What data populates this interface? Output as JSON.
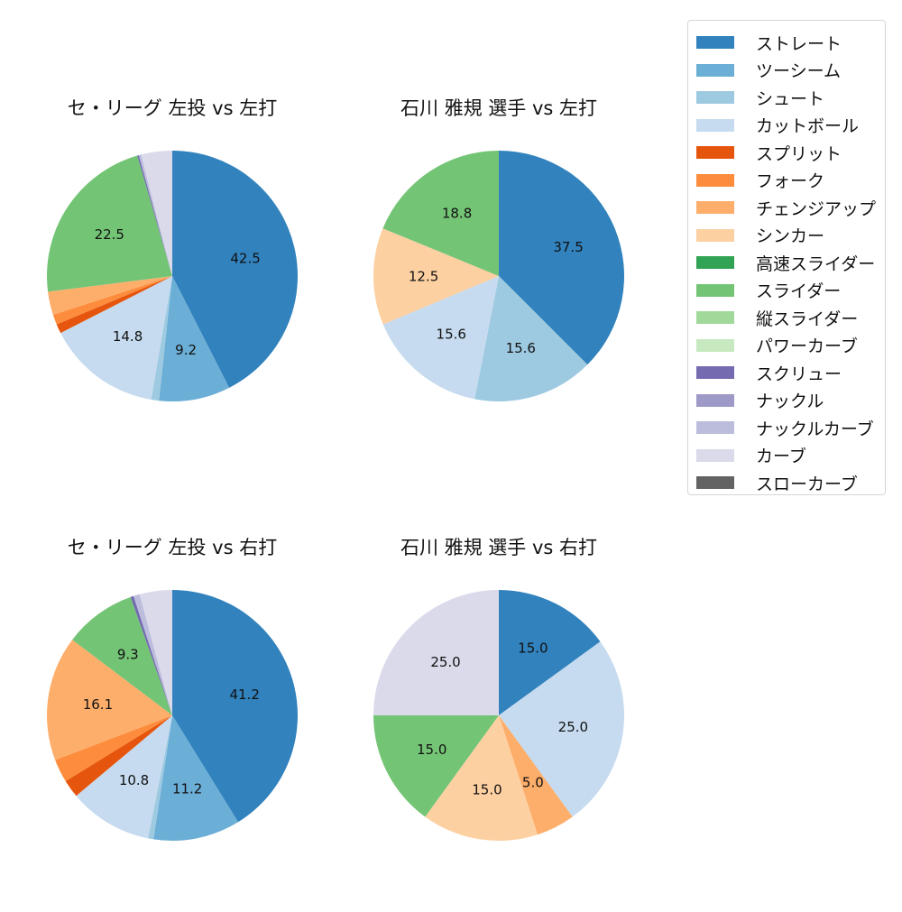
{
  "figure": {
    "legend": [
      {
        "label": "ストレート",
        "color": "#3182bd"
      },
      {
        "label": "ツーシーム",
        "color": "#6baed6"
      },
      {
        "label": "シュート",
        "color": "#9ecae1"
      },
      {
        "label": "カットボール",
        "color": "#c6dbef"
      },
      {
        "label": "スプリット",
        "color": "#e6550d"
      },
      {
        "label": "フォーク",
        "color": "#fd8d3c"
      },
      {
        "label": "チェンジアップ",
        "color": "#fdae6b"
      },
      {
        "label": "シンカー",
        "color": "#fdd0a2"
      },
      {
        "label": "高速スライダー",
        "color": "#31a354"
      },
      {
        "label": "スライダー",
        "color": "#74c476"
      },
      {
        "label": "縦スライダー",
        "color": "#a1d99b"
      },
      {
        "label": "パワーカーブ",
        "color": "#c7e9c0"
      },
      {
        "label": "スクリュー",
        "color": "#756bb1"
      },
      {
        "label": "ナックル",
        "color": "#9e9ac8"
      },
      {
        "label": "ナックルカーブ",
        "color": "#bcbddc"
      },
      {
        "label": "カーブ",
        "color": "#dadaeb"
      },
      {
        "label": "スローカーブ",
        "color": "#636363"
      }
    ]
  },
  "chart_data": [
    {
      "type": "pie",
      "title": "セ・リーグ 左投 vs 左打",
      "start_angle": 90,
      "direction": "clockwise",
      "slices": [
        {
          "label": "ストレート",
          "value": 42.5,
          "show_label": true
        },
        {
          "label": "ツーシーム",
          "value": 9.2,
          "show_label": true
        },
        {
          "label": "シュート",
          "value": 1.0,
          "show_label": false
        },
        {
          "label": "カットボール",
          "value": 14.8,
          "show_label": true
        },
        {
          "label": "スプリット",
          "value": 1.2,
          "show_label": false
        },
        {
          "label": "フォーク",
          "value": 1.3,
          "show_label": false
        },
        {
          "label": "チェンジアップ",
          "value": 3.0,
          "show_label": false
        },
        {
          "label": "スライダー",
          "value": 22.5,
          "show_label": true
        },
        {
          "label": "スクリュー",
          "value": 0.2,
          "show_label": false
        },
        {
          "label": "ナックルカーブ",
          "value": 0.3,
          "show_label": false
        },
        {
          "label": "カーブ",
          "value": 4.0,
          "show_label": false
        }
      ]
    },
    {
      "type": "pie",
      "title": "石川 雅規 選手 vs 左打",
      "start_angle": 90,
      "direction": "clockwise",
      "slices": [
        {
          "label": "ストレート",
          "value": 37.5,
          "show_label": true
        },
        {
          "label": "シュート",
          "value": 15.6,
          "show_label": true
        },
        {
          "label": "カットボール",
          "value": 15.6,
          "show_label": true
        },
        {
          "label": "シンカー",
          "value": 12.5,
          "show_label": true
        },
        {
          "label": "スライダー",
          "value": 18.8,
          "show_label": true
        }
      ]
    },
    {
      "type": "pie",
      "title": "セ・リーグ 左投 vs 右打",
      "start_angle": 90,
      "direction": "clockwise",
      "slices": [
        {
          "label": "ストレート",
          "value": 41.2,
          "show_label": true
        },
        {
          "label": "ツーシーム",
          "value": 11.2,
          "show_label": true
        },
        {
          "label": "シュート",
          "value": 0.7,
          "show_label": false
        },
        {
          "label": "カットボール",
          "value": 10.8,
          "show_label": true
        },
        {
          "label": "スプリット",
          "value": 2.3,
          "show_label": false
        },
        {
          "label": "フォーク",
          "value": 3.0,
          "show_label": false
        },
        {
          "label": "チェンジアップ",
          "value": 16.1,
          "show_label": true
        },
        {
          "label": "スライダー",
          "value": 9.3,
          "show_label": true
        },
        {
          "label": "スクリュー",
          "value": 0.4,
          "show_label": false
        },
        {
          "label": "ナックルカーブ",
          "value": 0.8,
          "show_label": false
        },
        {
          "label": "カーブ",
          "value": 4.2,
          "show_label": false
        }
      ]
    },
    {
      "type": "pie",
      "title": "石川 雅規 選手 vs 右打",
      "start_angle": 90,
      "direction": "clockwise",
      "slices": [
        {
          "label": "ストレート",
          "value": 15.0,
          "show_label": true
        },
        {
          "label": "カットボール",
          "value": 25.0,
          "show_label": true
        },
        {
          "label": "チェンジアップ",
          "value": 5.0,
          "show_label": true
        },
        {
          "label": "シンカー",
          "value": 15.0,
          "show_label": true
        },
        {
          "label": "スライダー",
          "value": 15.0,
          "show_label": true
        },
        {
          "label": "カーブ",
          "value": 25.0,
          "show_label": true
        }
      ]
    }
  ]
}
